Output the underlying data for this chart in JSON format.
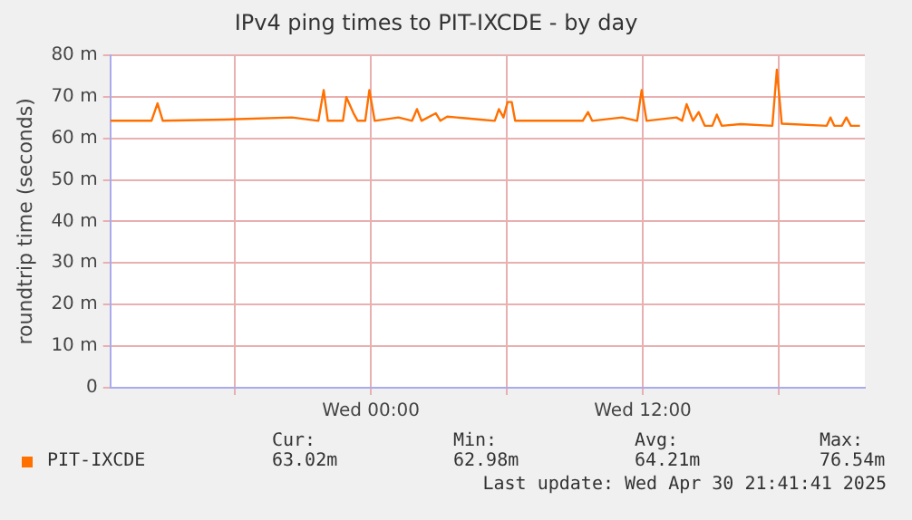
{
  "chart_data": {
    "type": "line",
    "title": "IPv4 ping times to PIT-IXCDE - by day",
    "ylabel": "roundtrip time (seconds)",
    "x": [
      "2025-04-29T12:30",
      "2025-04-29T14:19",
      "2025-04-29T14:35",
      "2025-04-29T14:49",
      "2025-04-29T17:32",
      "2025-04-29T20:31",
      "2025-04-29T21:41",
      "2025-04-29T21:55",
      "2025-04-29T22:06",
      "2025-04-29T22:46",
      "2025-04-29T22:55",
      "2025-04-29T23:14",
      "2025-04-29T23:25",
      "2025-04-29T23:45",
      "2025-04-29T23:56",
      "2025-04-30T00:10",
      "2025-04-30T01:13",
      "2025-04-30T01:49",
      "2025-04-30T02:02",
      "2025-04-30T02:14",
      "2025-04-30T02:52",
      "2025-04-30T03:04",
      "2025-04-30T03:22",
      "2025-04-30T03:47",
      "2025-04-30T04:50",
      "2025-04-30T05:28",
      "2025-04-30T05:39",
      "2025-04-30T05:51",
      "2025-04-30T06:02",
      "2025-04-30T06:13",
      "2025-04-30T06:22",
      "2025-04-30T09:21",
      "2025-04-30T09:35",
      "2025-04-30T09:46",
      "2025-04-30T11:05",
      "2025-04-30T11:45",
      "2025-04-30T11:57",
      "2025-04-30T12:10",
      "2025-04-30T13:29",
      "2025-04-30T13:44",
      "2025-04-30T13:56",
      "2025-04-30T14:13",
      "2025-04-30T14:28",
      "2025-04-30T14:44",
      "2025-04-30T15:04",
      "2025-04-30T15:16",
      "2025-04-30T15:29",
      "2025-04-30T16:19",
      "2025-04-30T17:43",
      "2025-04-30T17:55",
      "2025-04-30T18:08",
      "2025-04-30T20:07",
      "2025-04-30T20:17",
      "2025-04-30T20:27",
      "2025-04-30T20:47",
      "2025-04-30T20:59",
      "2025-04-30T21:11",
      "2025-04-30T21:35"
    ],
    "series": [
      {
        "name": "PIT-IXCDE",
        "color": "#ff7000",
        "values": [
          64.2,
          64.2,
          68.4,
          64.2,
          64.5,
          65,
          64.2,
          71.6,
          64.2,
          64.2,
          69.9,
          66,
          64.2,
          64.2,
          71.6,
          64.2,
          65,
          64.2,
          67,
          64.2,
          66,
          64.2,
          65.2,
          65,
          64.5,
          64.2,
          67,
          65,
          68.7,
          68.7,
          64.2,
          64.2,
          66.3,
          64.2,
          65,
          64.2,
          71.6,
          64.2,
          65,
          64.2,
          68.2,
          64.2,
          66.3,
          63,
          63,
          65.7,
          63,
          63.4,
          63,
          76.5,
          63.5,
          63,
          65,
          63,
          63,
          65,
          63,
          63
        ]
      }
    ],
    "xlim": [
      "2025-04-29T12:30",
      "2025-04-30T21:48"
    ],
    "xticks": [
      {
        "value": "2025-04-29T18:00",
        "label": null
      },
      {
        "value": "2025-04-30T00:00",
        "label": "Wed 00:00"
      },
      {
        "value": "2025-04-30T06:00",
        "label": null
      },
      {
        "value": "2025-04-30T12:00",
        "label": "Wed 12:00"
      },
      {
        "value": "2025-04-30T18:00",
        "label": null
      }
    ],
    "ylim": [
      0,
      80
    ],
    "yticks": [
      0,
      {
        "value": 10,
        "label": "10 m"
      },
      {
        "value": 20,
        "label": "20 m"
      },
      {
        "value": 30,
        "label": "30 m"
      },
      {
        "value": 40,
        "label": "40 m"
      },
      {
        "value": 50,
        "label": "50 m"
      },
      {
        "value": 60,
        "label": "60 m"
      },
      {
        "value": 70,
        "label": "70 m"
      },
      {
        "value": 80,
        "label": "80 m"
      }
    ],
    "grid": true,
    "legend": "bottom left",
    "marker": "none",
    "line_style": "solid",
    "annotations": [
      "Cur:",
      "63.02m",
      "Min:",
      "62.98m",
      "Avg:",
      "64.21m",
      "Max:",
      "76.54m",
      "Last update: Wed Apr 30 21:41:41 2025"
    ]
  }
}
